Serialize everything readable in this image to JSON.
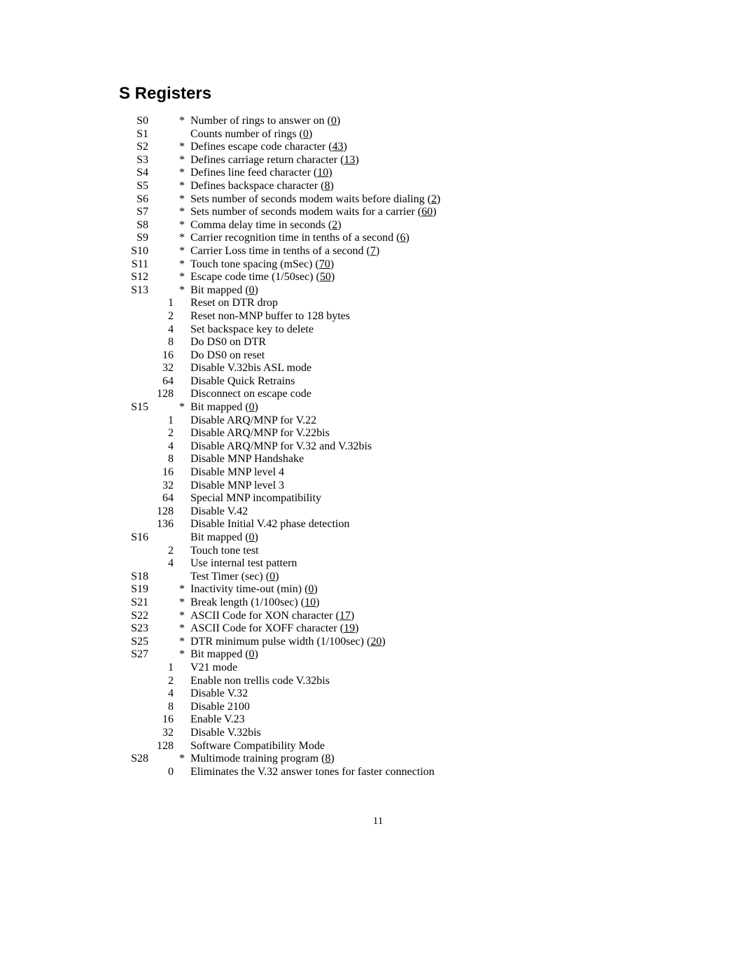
{
  "heading": "S Registers",
  "page_number": "11",
  "colors": {
    "background": "#ffffff",
    "text": "#000000"
  },
  "typography": {
    "heading_font": "Arial",
    "heading_weight": "bold",
    "heading_size_pt": 18,
    "body_font": "Times New Roman",
    "body_size_pt": 12
  },
  "rows": [
    {
      "reg": "S0",
      "star": "*",
      "desc": "Number of rings to answer on (",
      "default": "0",
      "after": ")"
    },
    {
      "reg": "S1",
      "star": "",
      "desc": "Counts number of rings (",
      "default": "0",
      "after": ")"
    },
    {
      "reg": "S2",
      "star": "*",
      "desc": "Defines escape code character (",
      "default": "43",
      "after": ")"
    },
    {
      "reg": "S3",
      "star": "*",
      "desc": "Defines carriage return character (",
      "default": "13",
      "after": ")"
    },
    {
      "reg": "S4",
      "star": "*",
      "desc": "Defines line feed character (",
      "default": "10",
      "after": ")"
    },
    {
      "reg": "S5",
      "star": "*",
      "desc": "Defines backspace character (",
      "default": "8",
      "after": ")"
    },
    {
      "reg": "S6",
      "star": "*",
      "desc": "Sets number of seconds modem waits before dialing (",
      "default": "2",
      "after": ")"
    },
    {
      "reg": "S7",
      "star": "*",
      "desc": "Sets number of seconds modem waits for a carrier (",
      "default": "60",
      "after": ")"
    },
    {
      "reg": "S8",
      "star": "*",
      "desc": "Comma delay time in seconds (",
      "default": "2",
      "after": ")"
    },
    {
      "reg": "S9",
      "star": "*",
      "desc": "Carrier recognition time in tenths of a second (",
      "default": "6",
      "after": ")"
    },
    {
      "reg": "S10",
      "star": "*",
      "desc": "Carrier Loss time in tenths of a second (",
      "default": "7",
      "after": ")"
    },
    {
      "reg": "S11",
      "star": "*",
      "desc": "Touch tone spacing (mSec) (",
      "default": "70",
      "after": ")"
    },
    {
      "reg": "S12",
      "star": "*",
      "desc": "Escape code time (1/50sec) (",
      "default": "50",
      "after": ")"
    },
    {
      "reg": "S13",
      "star": "*",
      "desc": "Bit mapped (",
      "default": "0",
      "after": ")"
    },
    {
      "bit": "1",
      "desc": "Reset on DTR drop"
    },
    {
      "bit": "2",
      "desc": "Reset non-MNP buffer to 128 bytes"
    },
    {
      "bit": "4",
      "desc": "Set backspace key to delete"
    },
    {
      "bit": "8",
      "desc": "Do DS0 on DTR"
    },
    {
      "bit": "16",
      "desc": "Do DS0 on reset"
    },
    {
      "bit": "32",
      "desc": "Disable V.32bis ASL mode"
    },
    {
      "bit": "64",
      "desc": "Disable Quick Retrains"
    },
    {
      "bit": "128",
      "desc": "Disconnect on escape code"
    },
    {
      "reg": "S15",
      "star": "*",
      "desc": "Bit mapped (",
      "default": "0",
      "after": ")"
    },
    {
      "bit": "1",
      "desc": "Disable ARQ/MNP for V.22"
    },
    {
      "bit": "2",
      "desc": "Disable ARQ/MNP for V.22bis"
    },
    {
      "bit": "4",
      "desc": "Disable ARQ/MNP for V.32 and V.32bis"
    },
    {
      "bit": "8",
      "desc": "Disable MNP Handshake"
    },
    {
      "bit": "16",
      "desc": "Disable MNP level 4"
    },
    {
      "bit": "32",
      "desc": "Disable MNP level 3"
    },
    {
      "bit": "64",
      "desc": "Special MNP incompatibility"
    },
    {
      "bit": "128",
      "desc": "Disable V.42"
    },
    {
      "bit": "136",
      "desc": "Disable Initial V.42 phase detection"
    },
    {
      "reg": "S16",
      "star": "",
      "desc": "Bit mapped (",
      "default": "0",
      "after": ")"
    },
    {
      "bit": "2",
      "desc": "Touch tone test"
    },
    {
      "bit": "4",
      "desc": "Use internal test pattern"
    },
    {
      "reg": "S18",
      "star": "",
      "desc": "Test Timer (sec) (",
      "default": "0",
      "after": ")"
    },
    {
      "reg": "S19",
      "star": "*",
      "desc": "Inactivity time-out (min) (",
      "default": "0",
      "after": ")"
    },
    {
      "reg": "S21",
      "star": "*",
      "desc": "Break length (1/100sec) (",
      "default": "10",
      "after": ")"
    },
    {
      "reg": "S22",
      "star": "*",
      "desc": "ASCII Code for XON character (",
      "default": "17",
      "after": ")"
    },
    {
      "reg": "S23",
      "star": "*",
      "desc": "ASCII Code for XOFF character (",
      "default": "19",
      "after": ")"
    },
    {
      "reg": "S25",
      "star": "*",
      "desc": "DTR minimum pulse width (1/100sec) (",
      "default": "20",
      "after": ")"
    },
    {
      "reg": "S27",
      "star": "*",
      "desc": "Bit mapped (",
      "default": "0",
      "after": ")"
    },
    {
      "bit": "1",
      "desc": "V21 mode"
    },
    {
      "bit": "2",
      "desc": "Enable non trellis code V.32bis"
    },
    {
      "bit": "4",
      "desc": "Disable V.32"
    },
    {
      "bit": "8",
      "desc": "Disable 2100"
    },
    {
      "bit": "16",
      "desc": "Enable V.23"
    },
    {
      "bit": "32",
      "desc": "Disable V.32bis"
    },
    {
      "bit": "128",
      "desc": "Software Compatibility Mode"
    },
    {
      "reg": "S28",
      "star": "*",
      "desc": "Multimode training program (",
      "default": "8",
      "after": ")"
    },
    {
      "bit": "0",
      "desc": "Eliminates the V.32 answer tones for faster connection"
    }
  ]
}
